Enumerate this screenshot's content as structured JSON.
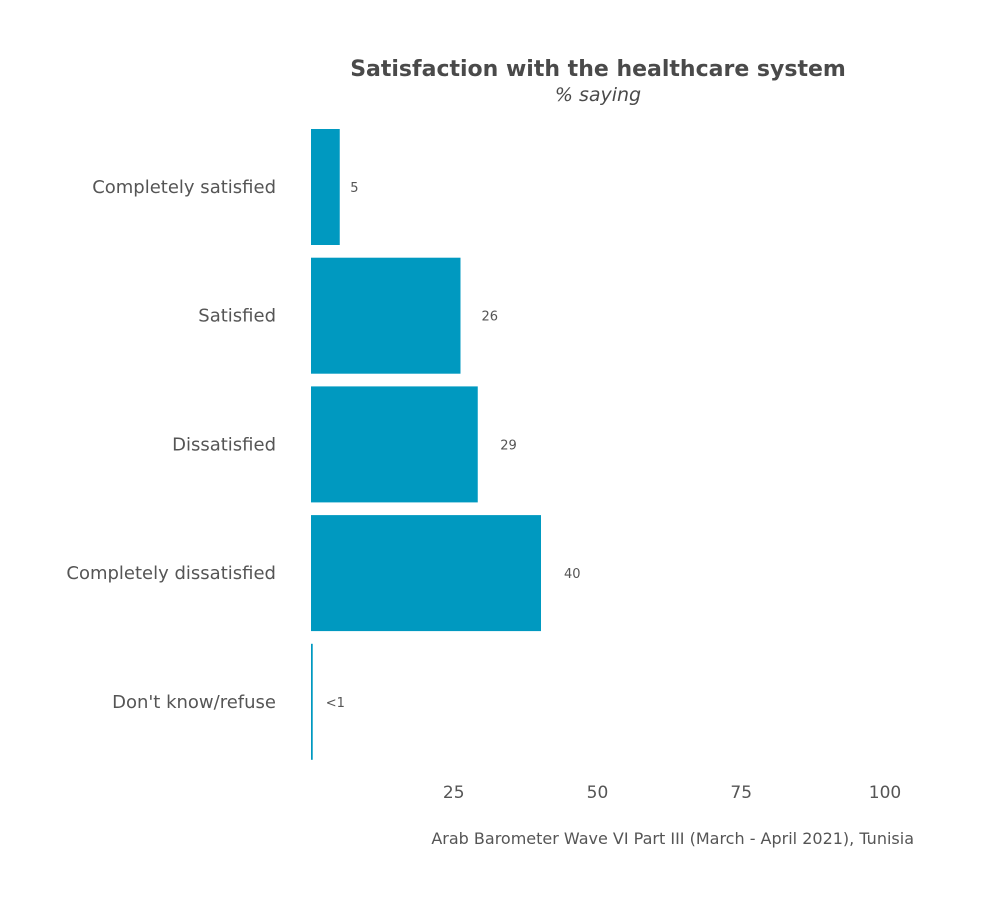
{
  "chart_data": {
    "type": "bar",
    "orientation": "horizontal",
    "title": "Satisfaction with the healthcare system",
    "subtitle": "% saying",
    "categories": [
      "Completely satisfied",
      "Satisfied",
      "Dissatisfied",
      "Completely dissatisfied",
      "Don't know/refuse"
    ],
    "values": [
      5,
      26,
      29,
      40,
      0.3
    ],
    "value_labels": [
      "5",
      "26",
      "29",
      "40",
      "<1"
    ],
    "xlim": [
      0,
      100
    ],
    "xticks": [
      25,
      50,
      75,
      100
    ],
    "xtick_labels": [
      "25",
      "50",
      "75",
      "100"
    ],
    "grid": false,
    "legend": "none",
    "bar_color": "#0099c0",
    "caption": "Arab Barometer Wave VI Part III (March - April 2021), Tunisia"
  }
}
